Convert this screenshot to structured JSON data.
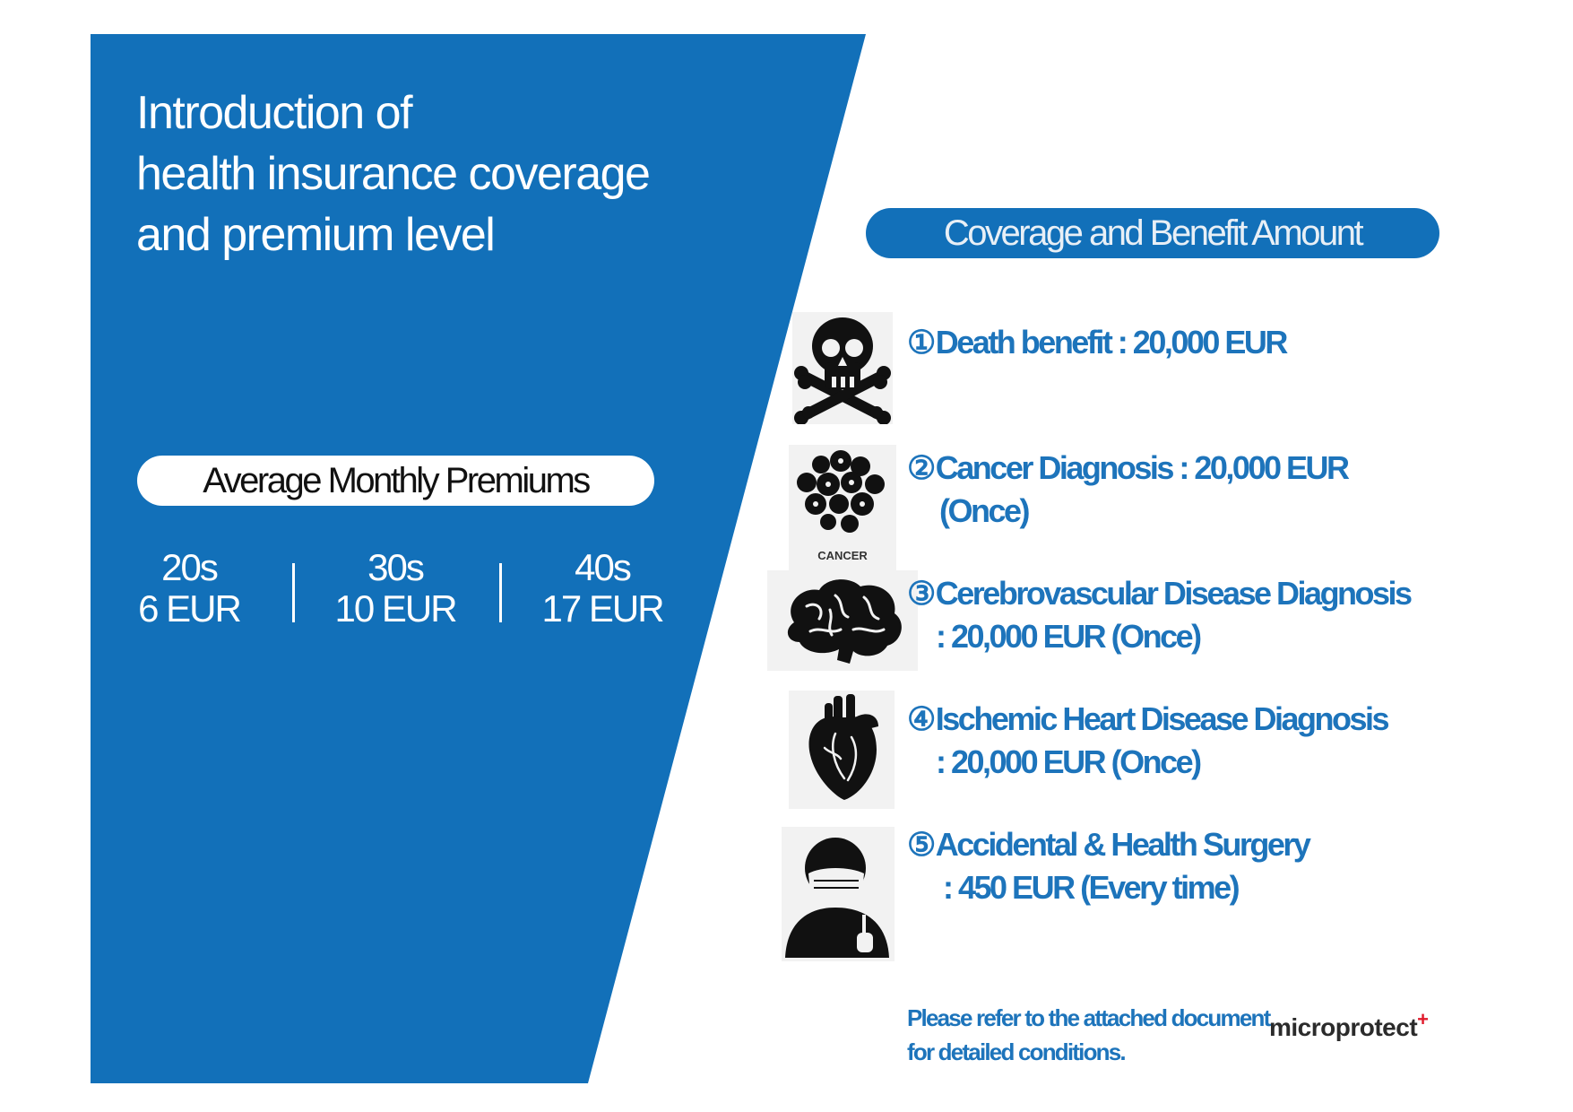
{
  "colors": {
    "panel_blue": "#1270b9",
    "text_blue": "#1d74bb",
    "white": "#ffffff",
    "brand_plus": "#e01a2b"
  },
  "title": {
    "line1": "Introduction of",
    "line2": "health insurance coverage",
    "line3": "and premium level"
  },
  "premiums": {
    "heading": "Average Monthly Premiums",
    "groups": [
      {
        "age": "20s",
        "price": "6 EUR"
      },
      {
        "age": "30s",
        "price": "10 EUR"
      },
      {
        "age": "40s",
        "price": "17 EUR"
      }
    ]
  },
  "coverage": {
    "heading": "Coverage and Benefit Amount",
    "items": [
      {
        "num": "①",
        "line1": "Death benefit : 20,000 EUR",
        "line2": "",
        "icon": "skull-crossbones-icon"
      },
      {
        "num": "②",
        "line1": "Cancer Diagnosis : 20,000 EUR",
        "line2": "(Once)",
        "icon": "cancer-cells-icon",
        "icon_label": "CANCER"
      },
      {
        "num": "③",
        "line1": "Cerebrovascular Disease Diagnosis",
        "line2": ": 20,000 EUR (Once)",
        "icon": "brain-icon"
      },
      {
        "num": "④",
        "line1": "Ischemic Heart Disease Diagnosis",
        "line2": ": 20,000 EUR (Once)",
        "icon": "heart-icon"
      },
      {
        "num": "⑤",
        "line1": "Accidental & Health Surgery",
        "line2": ": 450 EUR (Every time)",
        "icon": "surgeon-icon"
      }
    ]
  },
  "footnote": {
    "line1": "Please refer to the attached document",
    "line2": "for detailed conditions."
  },
  "brand": {
    "name": "microprotect",
    "plus": "+"
  }
}
